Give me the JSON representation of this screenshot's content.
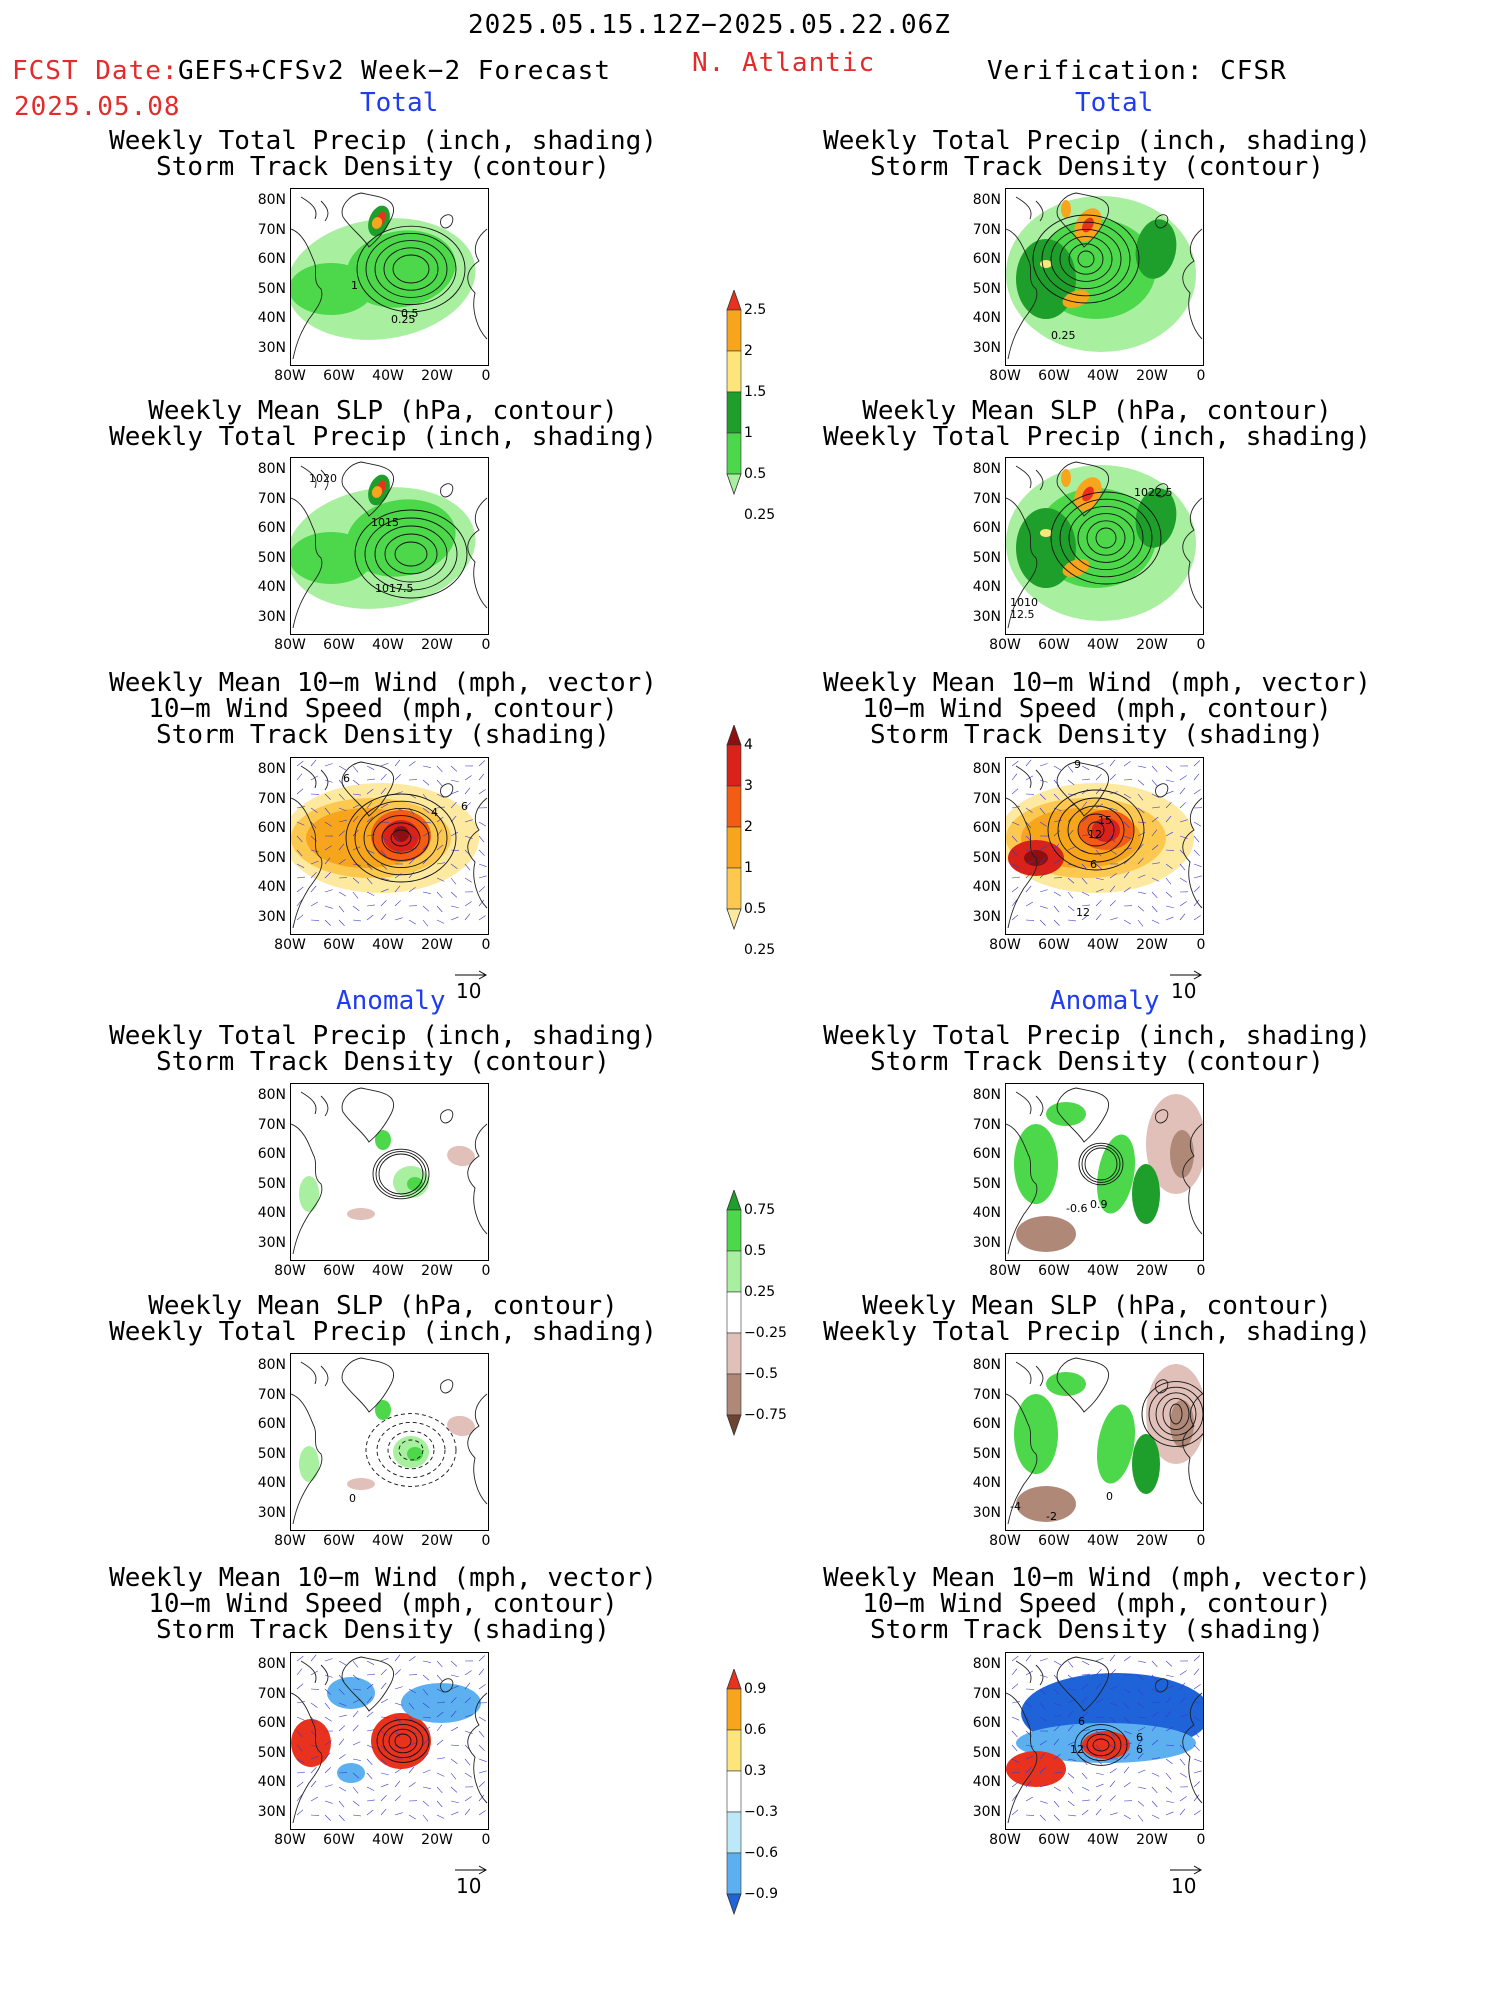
{
  "header": {
    "period": "2025.05.15.12Z−2025.05.22.06Z",
    "fcst_label": "FCST Date:",
    "fcst_date": "2025.05.08",
    "left_title": "GEFS+CFSv2 Week−2 Forecast",
    "region": "N. Atlantic",
    "right_title": "Verification: CFSR"
  },
  "sections": {
    "total": "Total",
    "anomaly": "Anomaly"
  },
  "panel_titles": {
    "precip_track": [
      "Weekly Total Precip (inch, shading)",
      "Storm Track Density (contour)"
    ],
    "slp_precip": [
      "Weekly Mean SLP (hPa, contour)",
      "Weekly Total Precip (inch, shading)"
    ],
    "wind_track": [
      "Weekly Mean 10−m Wind (mph, vector)",
      "10−m Wind Speed (mph, contour)",
      "Storm Track Density (shading)"
    ]
  },
  "axes": {
    "lat_labels": [
      "80N",
      "70N",
      "60N",
      "50N",
      "40N",
      "30N"
    ],
    "lon_labels": [
      "80W",
      "60W",
      "40W",
      "20W",
      "0"
    ]
  },
  "vector_ref": "10",
  "panels": {
    "fc_total_precip": {
      "labels": [
        "1",
        "0.5",
        "0.25"
      ]
    },
    "fc_total_slp": {
      "labels": [
        "1020",
        "1015",
        "1017.5"
      ]
    },
    "fc_total_wind": {
      "labels": [
        "6",
        "4",
        "6"
      ]
    },
    "ver_total_precip": {
      "labels": [
        "0.25"
      ]
    },
    "ver_total_slp": {
      "labels": [
        "1022.5",
        "1010",
        "12.5"
      ]
    },
    "ver_total_wind": {
      "labels": [
        "9",
        "15",
        "12",
        "6",
        "12"
      ]
    },
    "fc_anom_precip": {
      "labels": []
    },
    "fc_anom_slp": {
      "labels": [
        "0"
      ]
    },
    "fc_anom_wind": {
      "labels": []
    },
    "ver_anom_precip": {
      "labels": [
        "-0.6",
        "0.9"
      ]
    },
    "ver_anom_slp": {
      "labels": [
        "0",
        "-4",
        "-2"
      ]
    },
    "ver_anom_wind": {
      "labels": [
        "6",
        "12",
        "6",
        "6"
      ]
    }
  },
  "colorbars": {
    "precip_total": {
      "labels": [
        "2.5",
        "2",
        "1.5",
        "1",
        "0.5",
        "0.25"
      ],
      "colors": [
        "#e8321e",
        "#f8a51e",
        "#fde57c",
        "#1e9e2a",
        "#4cd84a",
        "#a8f0a0"
      ]
    },
    "track_total": {
      "labels": [
        "4",
        "3",
        "2",
        "1",
        "0.5",
        "0.25"
      ],
      "colors": [
        "#8e0f0f",
        "#d8221a",
        "#f25c14",
        "#f8a51e",
        "#fcc850",
        "#fdeaa0"
      ]
    },
    "precip_anom": {
      "labels": [
        "0.75",
        "0.5",
        "0.25",
        "−0.25",
        "−0.5",
        "−0.75"
      ],
      "colors": [
        "#1e9e2a",
        "#4cd84a",
        "#a8f0a0",
        "#ffffff",
        "#e0c0b8",
        "#b08878",
        "#6e4430"
      ]
    },
    "track_anom": {
      "labels": [
        "0.9",
        "0.6",
        "0.3",
        "−0.3",
        "−0.6",
        "−0.9"
      ],
      "colors": [
        "#e8321e",
        "#f8a51e",
        "#fde57c",
        "#ffffff",
        "#bde8f8",
        "#5cb0f0",
        "#1e64d8"
      ]
    }
  }
}
